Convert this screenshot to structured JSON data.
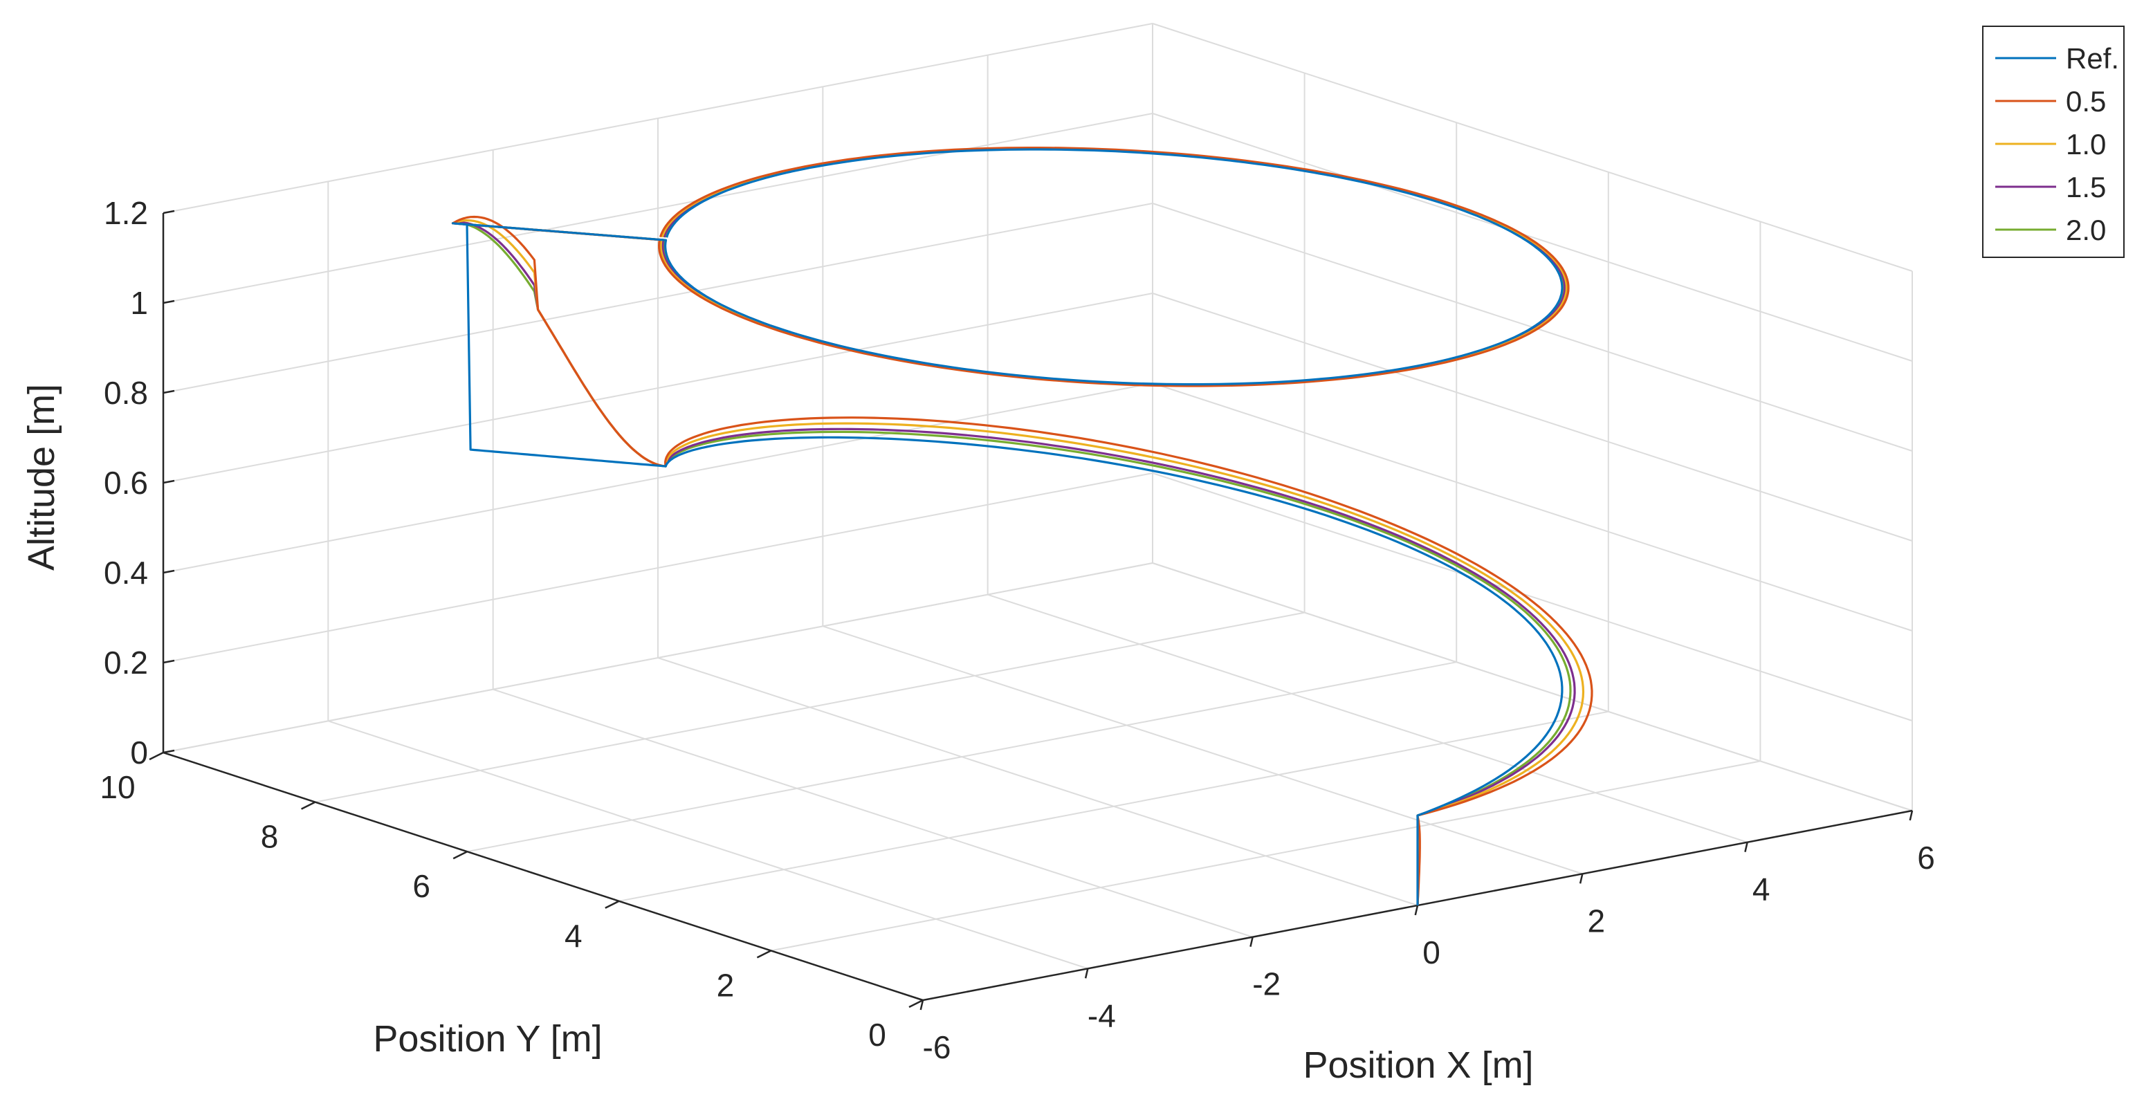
{
  "chart_data": {
    "type": "line",
    "projection": "3d",
    "xlabel": "Position X [m]",
    "ylabel": "Position Y [m]",
    "zlabel": "Altitude [m]",
    "xlim": [
      -6,
      6
    ],
    "ylim": [
      0,
      10
    ],
    "zlim": [
      0,
      1.2
    ],
    "x_ticks": [
      "-6",
      "-4",
      "-2",
      "0",
      "2",
      "4",
      "6"
    ],
    "y_ticks": [
      "0",
      "2",
      "4",
      "6",
      "8",
      "10"
    ],
    "z_ticks": [
      "0",
      "0.2",
      "0.4",
      "0.6",
      "0.8",
      "1",
      "1.2"
    ],
    "grid": true,
    "legend_position": "top-right",
    "series": [
      {
        "name": "Ref.",
        "color": "#0072BD",
        "deviation": 0.0
      },
      {
        "name": "0.5",
        "color": "#D95319",
        "deviation": 0.07
      },
      {
        "name": "1.0",
        "color": "#EDB120",
        "deviation": 0.05
      },
      {
        "name": "1.5",
        "color": "#7E2F8E",
        "deviation": 0.03
      },
      {
        "name": "2.0",
        "color": "#77AC30",
        "deviation": 0.02
      }
    ],
    "trajectory": {
      "start": {
        "x": 0,
        "y": 0,
        "z": 0
      },
      "first_loop": {
        "center_x": 0,
        "center_y": 4,
        "radius": 4,
        "z_start": 0.2,
        "z_end": 0.7
      },
      "climb": {
        "z_from": 0.7,
        "z_to": 1.2
      },
      "second_loop": {
        "center_x": 0,
        "center_y": 4,
        "radius": 4,
        "z": 1.2
      }
    }
  }
}
